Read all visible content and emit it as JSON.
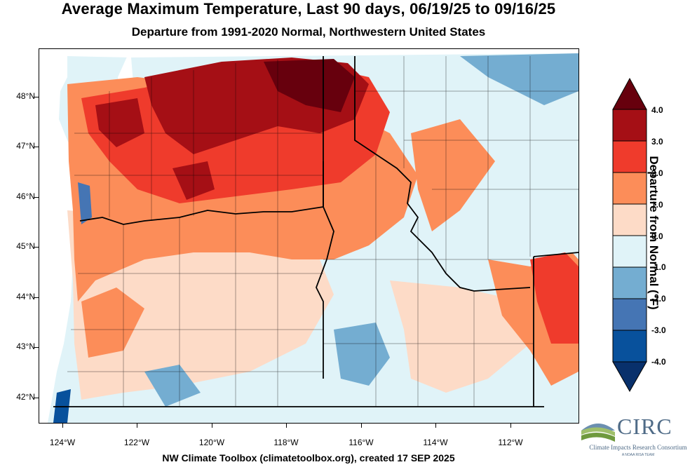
{
  "title": "Average Maximum Temperature, Last 90 days, 06/19/25 to 09/16/25",
  "subtitle": "Departure from 1991-2020 Normal, Northwestern United States",
  "footer": "NW Climate Toolbox (climatetoolbox.org), created 17 SEP 2025",
  "legend": {
    "title": "Departure from Normal (°F)",
    "labels": [
      "4.0",
      "3.0",
      "2.0",
      "1.0",
      "0.0",
      "-1.0",
      "-2.0",
      "-3.0",
      "-4.0"
    ],
    "colors": [
      "#67000d",
      "#a50f15",
      "#ef3b2c",
      "#fc8d59",
      "#fddbc7",
      "#e0f3f8",
      "#74add1",
      "#4575b4",
      "#08519c",
      "#08306b"
    ]
  },
  "axes": {
    "lat_labels": [
      "48°N",
      "47°N",
      "46°N",
      "45°N",
      "44°N",
      "43°N",
      "42°N"
    ],
    "lon_labels": [
      "124°W",
      "122°W",
      "120°W",
      "118°W",
      "116°W",
      "114°W",
      "112°W"
    ]
  },
  "logo": {
    "name": "CIRC",
    "subtitle": "Climate Impacts Research Consortium",
    "tagline": "A NOAA RISA TEAM"
  }
}
